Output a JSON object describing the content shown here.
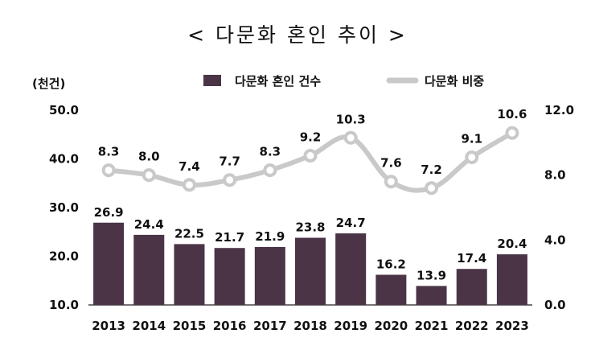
{
  "chart_data": {
    "type": "bar",
    "title": "< 다문화 혼인 추이 >",
    "left_axis_unit": "(천건)",
    "categories": [
      "2013",
      "2014",
      "2015",
      "2016",
      "2017",
      "2018",
      "2019",
      "2020",
      "2021",
      "2022",
      "2023"
    ],
    "series": [
      {
        "name": "다문화 혼인 건수",
        "type": "bar",
        "axis": "left",
        "color": "#4a3446",
        "values": [
          26.9,
          24.4,
          22.5,
          21.7,
          21.9,
          23.8,
          24.7,
          16.2,
          13.9,
          17.4,
          20.4
        ]
      },
      {
        "name": "다문화 비중",
        "type": "line",
        "axis": "right",
        "color": "#c9c9c9",
        "values": [
          8.3,
          8.0,
          7.4,
          7.7,
          8.3,
          9.2,
          10.3,
          7.6,
          7.2,
          9.1,
          10.6
        ]
      }
    ],
    "ylim_left": [
      10.0,
      50.0
    ],
    "yticks_left": [
      "10.0",
      "20.0",
      "30.0",
      "40.0",
      "50.0"
    ],
    "ylim_right": [
      0.0,
      12.0
    ],
    "yticks_right": [
      "0.0",
      "4.0",
      "8.0",
      "12.0"
    ],
    "legend_position": "top",
    "grid": false
  }
}
